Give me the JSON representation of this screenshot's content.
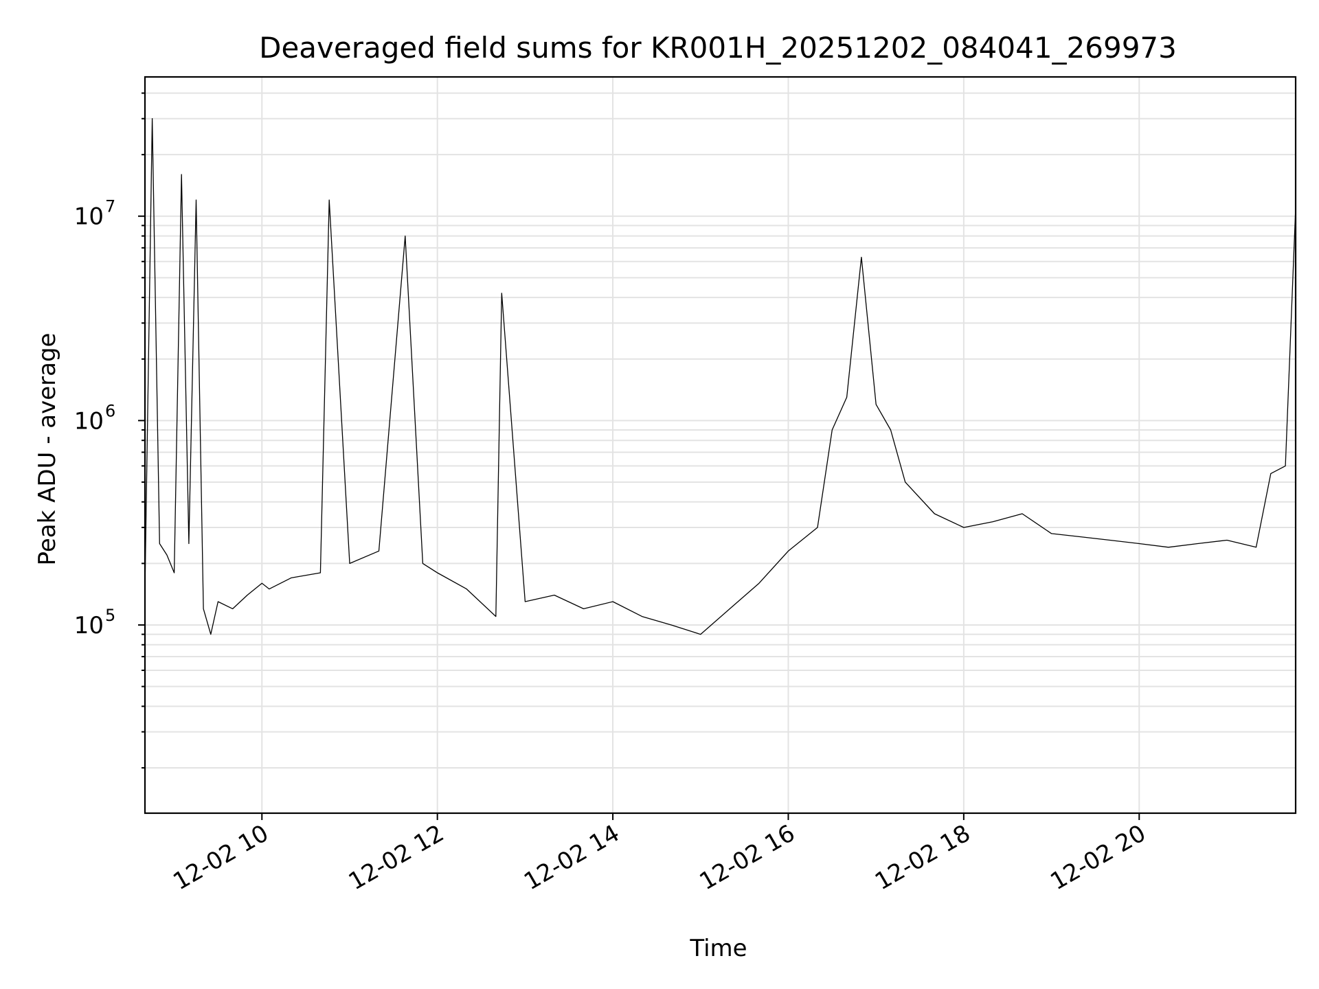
{
  "chart_data": {
    "type": "line",
    "title": "Deaveraged field sums for KR001H_20251202_084041_269973",
    "xlabel": "Time",
    "ylabel": "Peak ADU - average",
    "xlim": [
      "2025-12-02 08:40",
      "2025-12-02 21:47"
    ],
    "ylim": [
      12000,
      48000000
    ],
    "yscale": "log",
    "grid": true,
    "x_ticks": [
      {
        "value": "2025-12-02 10:00",
        "label": "12-02 10"
      },
      {
        "value": "2025-12-02 12:00",
        "label": "12-02 12"
      },
      {
        "value": "2025-12-02 14:00",
        "label": "12-02 14"
      },
      {
        "value": "2025-12-02 16:00",
        "label": "12-02 16"
      },
      {
        "value": "2025-12-02 18:00",
        "label": "12-02 18"
      },
      {
        "value": "2025-12-02 20:00",
        "label": "12-02 20"
      }
    ],
    "y_ticks": [
      {
        "value": 100000,
        "base": "10",
        "exp": "5"
      },
      {
        "value": 1000000,
        "base": "10",
        "exp": "6"
      },
      {
        "value": 10000000,
        "base": "10",
        "exp": "7"
      }
    ],
    "series": [
      {
        "color": "#000000",
        "x": [
          "2025-12-02 08:40",
          "2025-12-02 08:45",
          "2025-12-02 08:50",
          "2025-12-02 08:55",
          "2025-12-02 09:00",
          "2025-12-02 09:05",
          "2025-12-02 09:10",
          "2025-12-02 09:15",
          "2025-12-02 09:20",
          "2025-12-02 09:25",
          "2025-12-02 09:30",
          "2025-12-02 09:40",
          "2025-12-02 09:50",
          "2025-12-02 10:00",
          "2025-12-02 10:05",
          "2025-12-02 10:20",
          "2025-12-02 10:40",
          "2025-12-02 10:46",
          "2025-12-02 11:00",
          "2025-12-02 11:20",
          "2025-12-02 11:38",
          "2025-12-02 11:50",
          "2025-12-02 12:00",
          "2025-12-02 12:20",
          "2025-12-02 12:40",
          "2025-12-02 12:44",
          "2025-12-02 13:00",
          "2025-12-02 13:20",
          "2025-12-02 13:40",
          "2025-12-02 14:00",
          "2025-12-02 14:20",
          "2025-12-02 14:40",
          "2025-12-02 15:00",
          "2025-12-02 15:20",
          "2025-12-02 15:40",
          "2025-12-02 16:00",
          "2025-12-02 16:20",
          "2025-12-02 16:30",
          "2025-12-02 16:40",
          "2025-12-02 16:50",
          "2025-12-02 17:00",
          "2025-12-02 17:10",
          "2025-12-02 17:20",
          "2025-12-02 17:40",
          "2025-12-02 18:00",
          "2025-12-02 18:20",
          "2025-12-02 18:40",
          "2025-12-02 19:00",
          "2025-12-02 19:20",
          "2025-12-02 19:40",
          "2025-12-02 20:00",
          "2025-12-02 20:20",
          "2025-12-02 20:40",
          "2025-12-02 21:00",
          "2025-12-02 21:20",
          "2025-12-02 21:30",
          "2025-12-02 21:40",
          "2025-12-02 21:47"
        ],
        "y": [
          150000,
          30000000,
          250000,
          220000,
          180000,
          16000000,
          250000,
          12000000,
          120000,
          90000,
          130000,
          120000,
          140000,
          160000,
          150000,
          170000,
          180000,
          12000000,
          200000,
          230000,
          8000000,
          200000,
          180000,
          150000,
          110000,
          4200000,
          130000,
          140000,
          120000,
          130000,
          110000,
          100000,
          90000,
          120000,
          160000,
          230000,
          300000,
          900000,
          1300000,
          6300000,
          1200000,
          900000,
          500000,
          350000,
          300000,
          320000,
          350000,
          280000,
          270000,
          260000,
          250000,
          240000,
          250000,
          260000,
          240000,
          550000,
          600000,
          11000000
        ]
      }
    ]
  }
}
